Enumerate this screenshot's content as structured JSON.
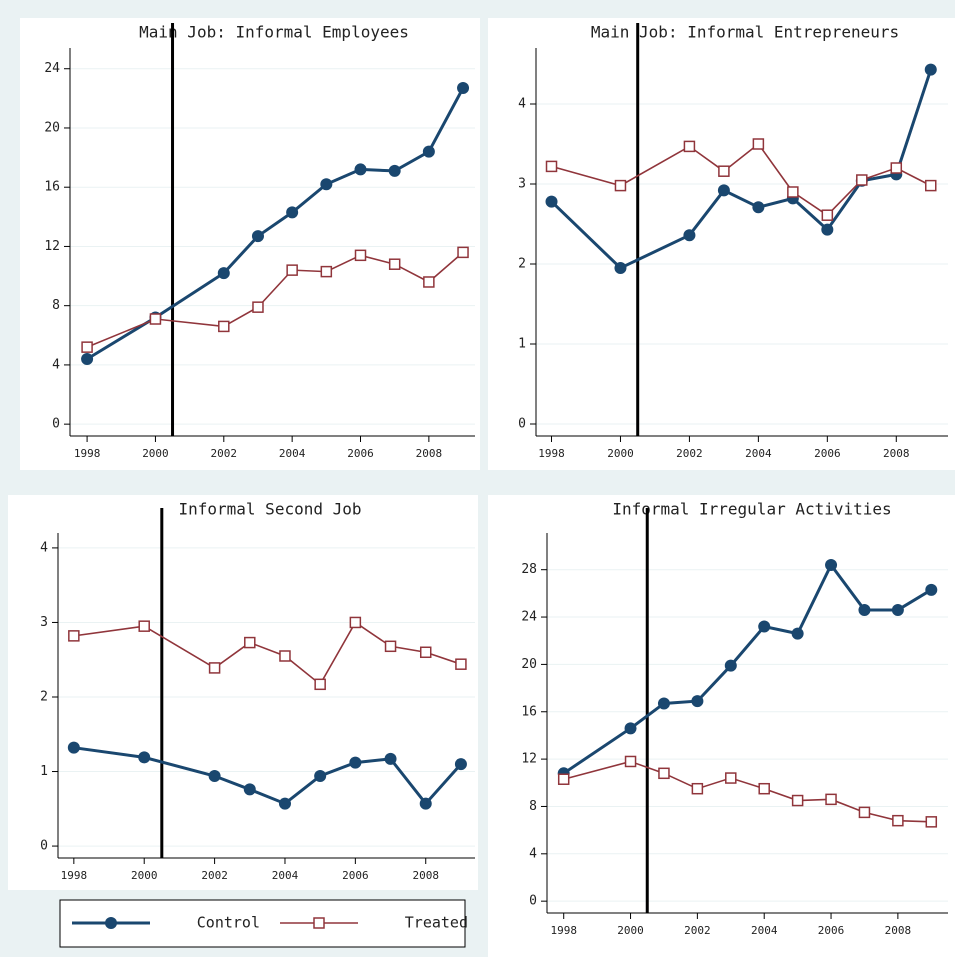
{
  "chart_data": [
    {
      "type": "line",
      "title": "Main Job: Informal Employees",
      "x": [
        1998,
        2000,
        2002,
        2003,
        2004,
        2005,
        2006,
        2007,
        2008,
        2009
      ],
      "series": [
        {
          "color": "#1a476f",
          "values": [
            4.4,
            7.2,
            10.2,
            12.7,
            14.3,
            16.2,
            17.2,
            17.1,
            18.4,
            22.7
          ]
        },
        {
          "color": "#90353b",
          "values": [
            5.2,
            7.1,
            6.6,
            7.9,
            10.4,
            10.3,
            11.4,
            10.8,
            9.6,
            11.6
          ]
        }
      ],
      "xlim": [
        1997.5,
        2009.35
      ],
      "xticks": [
        1998,
        2000,
        2002,
        2004,
        2006,
        2008
      ],
      "ylim": [
        -0.8,
        25.4
      ],
      "yticks": [
        0,
        4,
        8,
        12,
        16,
        20,
        24
      ],
      "vline": 2000.5,
      "grid": true
    },
    {
      "type": "line",
      "title": "Main Job: Informal Entrepreneurs",
      "x": [
        1998,
        2000,
        2002,
        2003,
        2004,
        2005,
        2006,
        2007,
        2008,
        2009
      ],
      "series": [
        {
          "color": "#1a476f",
          "values": [
            2.78,
            1.95,
            2.36,
            2.92,
            2.71,
            2.82,
            2.43,
            3.04,
            3.12,
            4.43
          ]
        },
        {
          "color": "#90353b",
          "values": [
            3.22,
            2.98,
            3.47,
            3.16,
            3.5,
            2.9,
            2.61,
            3.05,
            3.2,
            2.98
          ]
        }
      ],
      "xlim": [
        1997.55,
        2009.5
      ],
      "xticks": [
        1998,
        2000,
        2002,
        2004,
        2006,
        2008
      ],
      "ylim": [
        -0.15,
        4.7
      ],
      "yticks": [
        0,
        1,
        2,
        3,
        4
      ],
      "vline": 2000.5,
      "grid": true
    },
    {
      "type": "line",
      "title": "Informal Second Job",
      "x": [
        1998,
        2000,
        2002,
        2003,
        2004,
        2005,
        2006,
        2007,
        2008,
        2009
      ],
      "series": [
        {
          "name": "Control",
          "color": "#1a476f",
          "values": [
            1.32,
            1.19,
            0.94,
            0.76,
            0.57,
            0.94,
            1.12,
            1.17,
            0.57,
            1.1
          ]
        },
        {
          "name": "Treated",
          "color": "#90353b",
          "values": [
            2.82,
            2.95,
            2.39,
            2.73,
            2.55,
            2.17,
            3.0,
            2.68,
            2.6,
            2.44
          ]
        }
      ],
      "xlim": [
        1997.55,
        2009.4
      ],
      "xticks": [
        1998,
        2000,
        2002,
        2004,
        2006,
        2008
      ],
      "ylim": [
        -0.16,
        4.2
      ],
      "yticks": [
        0,
        1,
        2,
        3,
        4
      ],
      "vline": 2000.5,
      "grid": true
    },
    {
      "type": "line",
      "title": "Informal Irregular Activities",
      "x": [
        1998,
        2000,
        2001,
        2002,
        2003,
        2004,
        2005,
        2006,
        2007,
        2008,
        2009
      ],
      "series": [
        {
          "color": "#1a476f",
          "values": [
            10.8,
            14.6,
            16.7,
            16.9,
            19.9,
            23.2,
            22.6,
            28.4,
            24.6,
            24.6,
            26.3
          ]
        },
        {
          "color": "#90353b",
          "values": [
            10.3,
            11.8,
            10.8,
            9.5,
            10.4,
            9.5,
            8.5,
            8.6,
            7.5,
            6.8,
            6.7
          ]
        }
      ],
      "xlim": [
        1997.5,
        2009.5
      ],
      "xticks": [
        1998,
        2000,
        2002,
        2004,
        2006,
        2008
      ],
      "ylim": [
        -1.0,
        31.1
      ],
      "yticks": [
        0,
        4,
        8,
        12,
        16,
        20,
        24,
        28
      ],
      "vline": 2000.5,
      "grid": true
    }
  ]
}
